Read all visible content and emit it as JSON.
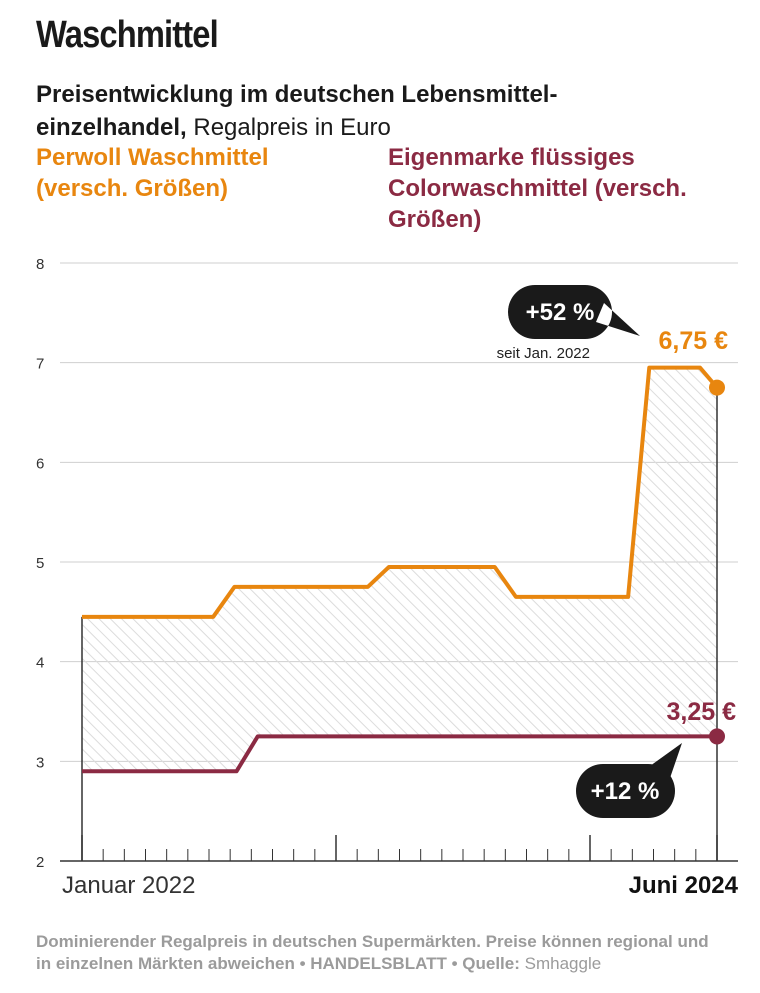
{
  "title": "Waschmittel",
  "subtitle": {
    "bold": "Preisentwicklung im deutschen Lebensmittel-einzelhandel,",
    "normal": "Regalpreis in Euro"
  },
  "legend": {
    "perwoll": "Perwoll Waschmittel (versch. Größen)",
    "eigenmarke": "Eigenmarke flüssiges Colorwaschmittel (versch. Größen)"
  },
  "footer": {
    "main": "Dominierender Regalpreis in deutschen Supermärkten. Preise können regional und in einzelnen Märkten abweichen • HANDELSBLATT • Quelle:",
    "source": "Smhaggle"
  },
  "colors": {
    "perwoll": "#e8860f",
    "eigenmarke": "#8b2a43",
    "grid": "#cfcfcf",
    "axis": "#333333",
    "callout": "#1a1a1a",
    "hatch": "#dcdcdc"
  },
  "chart_data": {
    "type": "line",
    "ylim": [
      2,
      8
    ],
    "yticks": [
      2,
      3,
      4,
      5,
      6,
      7,
      8
    ],
    "x_range": [
      0,
      30
    ],
    "x_start_label": "Januar 2022",
    "x_end_label": "Juni 2024",
    "grid": true,
    "area_between_series": "hatched",
    "series": [
      {
        "name": "Perwoll Waschmittel (versch. Größen)",
        "color": "#e8860f",
        "x": [
          0,
          6.2,
          7.2,
          13.5,
          14.5,
          19.5,
          20.5,
          25.8,
          26.8,
          29.2,
          30
        ],
        "y": [
          4.45,
          4.45,
          4.75,
          4.75,
          4.95,
          4.95,
          4.65,
          4.65,
          6.95,
          6.95,
          6.75
        ]
      },
      {
        "name": "Eigenmarke flüssiges Colorwaschmittel (versch. Größen)",
        "color": "#8b2a43",
        "x": [
          0,
          7.3,
          8.3,
          30
        ],
        "y": [
          2.9,
          2.9,
          3.25,
          3.25
        ]
      }
    ],
    "annotations": [
      {
        "series": 0,
        "value_label": "6,75 €",
        "change": "+52 %",
        "note": "seit Jan. 2022"
      },
      {
        "series": 1,
        "value_label": "3,25 €",
        "change": "+12 %"
      }
    ],
    "minor_ticks": [
      1,
      2,
      3,
      4,
      5,
      6,
      7,
      8,
      9,
      10,
      11,
      12,
      13,
      14,
      15,
      16,
      17,
      18,
      19,
      20,
      21,
      22,
      23,
      24,
      25,
      26,
      27,
      28,
      29
    ],
    "major_ticks": [
      0,
      12,
      24,
      30
    ]
  }
}
